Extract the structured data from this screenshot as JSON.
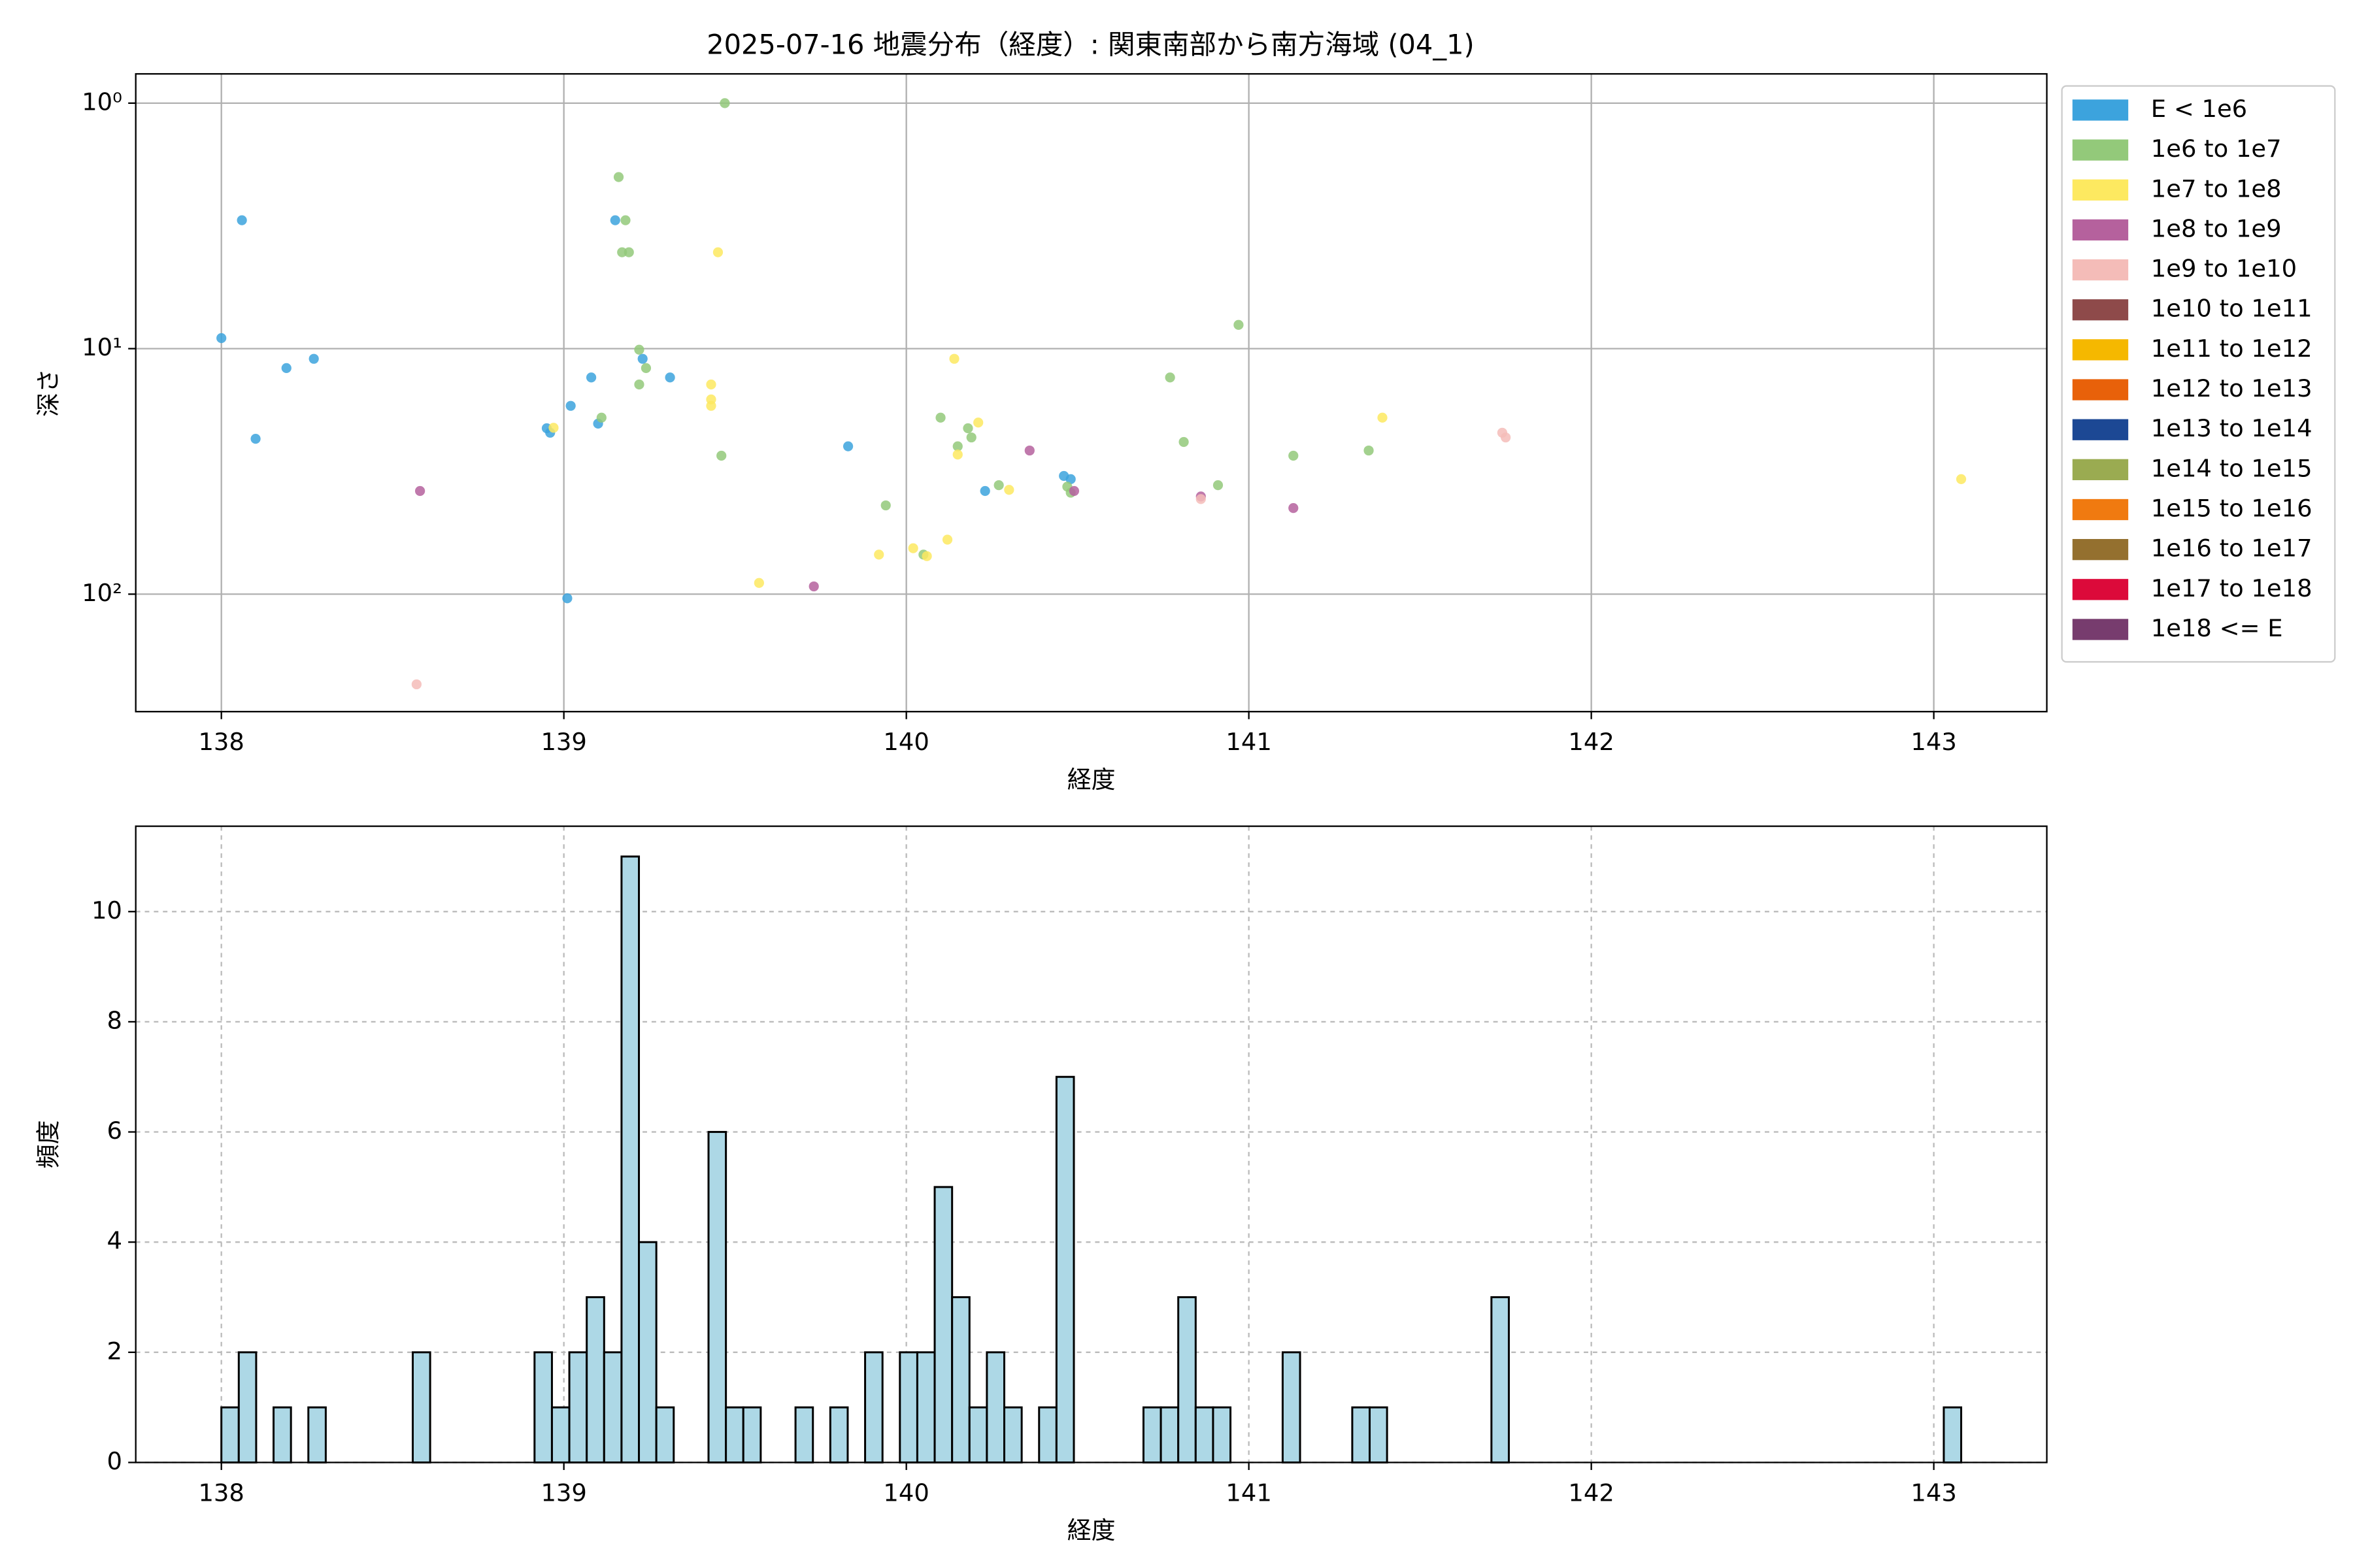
{
  "charts": [
    {
      "type": "scatter",
      "title": "2025-07-16 地震分布（経度）: 関東南部から南方海域 (04_1)",
      "x_label": "経度",
      "y_label": "深さ",
      "xlim": [
        137.75,
        143.33
      ],
      "xticks": [
        138,
        139,
        140,
        141,
        142,
        143
      ],
      "ylim": [
        0.76,
        301
      ],
      "log_y": true,
      "invert_y": true,
      "yticks": [
        {
          "value": 1,
          "label": "10⁰"
        },
        {
          "value": 10,
          "label": "10¹"
        },
        {
          "value": 100,
          "label": "10²"
        }
      ],
      "grid": "solid",
      "legend": "outside-right",
      "series": [
        {
          "name": "E < 1e6",
          "color": "#3ca3dd",
          "x": [
            138.0,
            138.06,
            138.1,
            138.19,
            138.27,
            138.95,
            138.96,
            139.02,
            139.08,
            139.1,
            139.01,
            139.15,
            139.23,
            139.31,
            139.83,
            140.23,
            140.46,
            140.48
          ],
          "values": [
            9.06,
            3.0,
            23.3,
            12.0,
            11.0,
            21.1,
            22,
            17.1,
            13.1,
            20.2,
            104,
            3.0,
            11.0,
            13.1,
            25,
            38,
            33,
            34
          ]
        },
        {
          "name": "1e6 to 1e7",
          "color": "#93c97a",
          "x": [
            139.16,
            139.18,
            139.17,
            139.19,
            139.47,
            139.22,
            139.24,
            139.22,
            139.11,
            139.46,
            139.94,
            140.05,
            140.1,
            140.15,
            140.18,
            140.19,
            140.27,
            140.47,
            140.48,
            140.77,
            140.81,
            140.91,
            140.97,
            141.13,
            141.35
          ],
          "values": [
            2.0,
            3.0,
            4.05,
            4.05,
            1.0,
            10.1,
            12.0,
            14.0,
            19.1,
            27.3,
            43.5,
            69,
            19.1,
            25,
            21.1,
            23,
            36,
            36.5,
            38.6,
            13.1,
            24,
            36,
            8.0,
            27.3,
            26
          ]
        },
        {
          "name": "1e7 to 1e8",
          "color": "#fde960",
          "x": [
            139.45,
            138.97,
            139.43,
            139.43,
            139.43,
            140.14,
            140.15,
            140.21,
            140.3,
            140.12,
            140.02,
            140.06,
            139.92,
            139.57,
            141.39,
            143.08
          ],
          "values": [
            4.05,
            21,
            14,
            16.1,
            17.1,
            11,
            27,
            20,
            37.6,
            60,
            65,
            70,
            69,
            90,
            19.1,
            34
          ]
        },
        {
          "name": "1e8 to 1e9",
          "color": "#b5619d",
          "x": [
            138.58,
            139.73,
            140.36,
            140.49,
            140.86,
            141.13
          ],
          "values": [
            38,
            93,
            26,
            38,
            40,
            44.6
          ]
        },
        {
          "name": "1e9 to 1e10",
          "color": "#f4bcb8",
          "x": [
            138.57,
            141.74,
            141.75,
            140.86
          ],
          "values": [
            233,
            22,
            23,
            41
          ]
        },
        {
          "name": "1e10 to 1e11",
          "color": "#8e4a4a",
          "x": [],
          "values": []
        },
        {
          "name": "1e11 to 1e12",
          "color": "#f5b800",
          "x": [],
          "values": []
        },
        {
          "name": "1e12 to 1e13",
          "color": "#e8610a",
          "x": [],
          "values": []
        },
        {
          "name": "1e13 to 1e14",
          "color": "#1c4894",
          "x": [],
          "values": []
        },
        {
          "name": "1e14 to 1e15",
          "color": "#9aab51",
          "x": [],
          "values": []
        },
        {
          "name": "1e15 to 1e16",
          "color": "#f07a10",
          "x": [],
          "values": []
        },
        {
          "name": "1e16 to 1e17",
          "color": "#94702f",
          "x": [],
          "values": []
        },
        {
          "name": "1e17 to 1e18",
          "color": "#dc0a3a",
          "x": [],
          "values": []
        },
        {
          "name": "1e18 <= E",
          "color": "#773c6e",
          "x": [],
          "values": []
        }
      ]
    },
    {
      "type": "histogram",
      "x_label": "経度",
      "y_label": "頻度",
      "xlim": [
        137.75,
        143.33
      ],
      "xticks": [
        138,
        139,
        140,
        141,
        142,
        143
      ],
      "ylim": [
        0,
        11.55
      ],
      "yticks": [
        0,
        2,
        4,
        6,
        8,
        10
      ],
      "grid": "dashed",
      "color": "#add8e6",
      "bins": [
        138.0,
        138.0508,
        138.1016,
        138.1524,
        138.2032,
        138.254,
        138.3048,
        138.3556,
        138.4064,
        138.4572,
        138.508,
        138.5588,
        138.6096,
        138.6604,
        138.7112,
        138.762,
        138.8128,
        138.8636,
        138.9144,
        138.9652,
        139.016,
        139.0668,
        139.1176,
        139.1684,
        139.2192,
        139.27,
        139.3208,
        139.3716,
        139.4224,
        139.4732,
        139.524,
        139.5748,
        139.6256,
        139.6764,
        139.7272,
        139.778,
        139.8288,
        139.8796,
        139.9304,
        139.9812,
        140.032,
        140.0828,
        140.1336,
        140.1844,
        140.2352,
        140.286,
        140.3368,
        140.3876,
        140.4384,
        140.4892,
        140.54,
        140.5908,
        140.6416,
        140.6924,
        140.7432,
        140.794,
        140.8448,
        140.8956,
        140.9464,
        140.9972,
        141.048,
        141.0988,
        141.1496,
        141.2004,
        141.2512,
        141.302,
        141.3528,
        141.4036,
        141.4544,
        141.5052,
        141.556,
        141.6068,
        141.6576,
        141.7084,
        141.7592,
        141.81,
        141.8608,
        141.9116,
        141.9624,
        142.0132,
        142.064,
        142.1148,
        142.1656,
        142.2164,
        142.2672,
        142.318,
        142.3688,
        142.4196,
        142.4704,
        142.5212,
        142.572,
        142.6228,
        142.6736,
        142.7244,
        142.7752,
        142.826,
        142.8768,
        142.9276,
        142.9784,
        143.0292,
        143.08
      ],
      "values": [
        1,
        2,
        0,
        1,
        0,
        1,
        0,
        0,
        0,
        0,
        0,
        2,
        0,
        0,
        0,
        0,
        0,
        0,
        2,
        1,
        2,
        3,
        2,
        11,
        4,
        1,
        0,
        0,
        6,
        1,
        1,
        0,
        0,
        1,
        0,
        1,
        0,
        2,
        0,
        2,
        2,
        5,
        3,
        1,
        2,
        1,
        0,
        1,
        7,
        0,
        0,
        0,
        0,
        1,
        1,
        3,
        1,
        1,
        0,
        0,
        0,
        2,
        0,
        0,
        0,
        1,
        1,
        0,
        0,
        0,
        0,
        0,
        0,
        3,
        0,
        0,
        0,
        0,
        0,
        0,
        0,
        0,
        0,
        0,
        0,
        0,
        0,
        0,
        0,
        0,
        0,
        0,
        0,
        0,
        0,
        0,
        0,
        0,
        0,
        1
      ]
    }
  ]
}
